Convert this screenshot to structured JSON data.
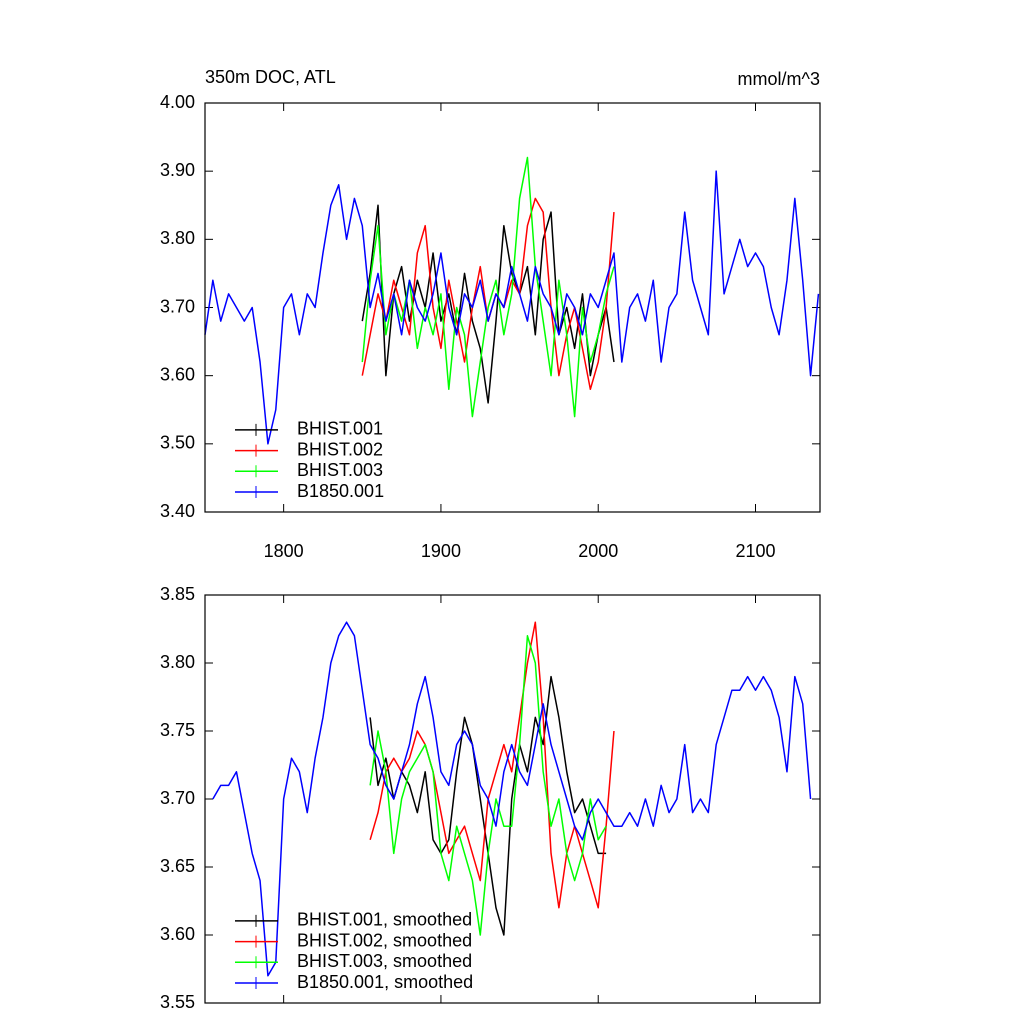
{
  "chart_data": [
    {
      "type": "line",
      "title": "350m DOC, ATL",
      "units": "mmol/m^3",
      "xlim": [
        1750,
        2141
      ],
      "xticks": [
        1800,
        1900,
        2000,
        2100
      ],
      "xtick_labels": true,
      "ylim": [
        3.4,
        4.0
      ],
      "yticks": [
        {
          "value": 3.4,
          "label": "3.40"
        },
        {
          "value": 3.5,
          "label": "3.50"
        },
        {
          "value": 3.6,
          "label": "3.60"
        },
        {
          "value": 3.7,
          "label": "3.70"
        },
        {
          "value": 3.8,
          "label": "3.80"
        },
        {
          "value": 3.9,
          "label": "3.90"
        },
        {
          "value": 4.0,
          "label": "4.00"
        }
      ],
      "legend": "lower left",
      "series": [
        {
          "name": "BHIST.001",
          "color": "#000000",
          "x": [
            1850,
            1855,
            1860,
            1865,
            1870,
            1875,
            1880,
            1885,
            1890,
            1895,
            1900,
            1905,
            1910,
            1915,
            1920,
            1925,
            1930,
            1935,
            1940,
            1945,
            1950,
            1955,
            1960,
            1965,
            1970,
            1975,
            1980,
            1985,
            1990,
            1995,
            2000,
            2005,
            2010
          ],
          "values": [
            3.68,
            3.75,
            3.85,
            3.6,
            3.72,
            3.76,
            3.68,
            3.74,
            3.7,
            3.78,
            3.68,
            3.72,
            3.66,
            3.75,
            3.68,
            3.64,
            3.56,
            3.68,
            3.82,
            3.75,
            3.72,
            3.76,
            3.66,
            3.8,
            3.84,
            3.66,
            3.7,
            3.64,
            3.72,
            3.6,
            3.66,
            3.7,
            3.62
          ]
        },
        {
          "name": "BHIST.002",
          "color": "#ff0000",
          "x": [
            1850,
            1855,
            1860,
            1865,
            1870,
            1875,
            1880,
            1885,
            1890,
            1895,
            1900,
            1905,
            1910,
            1915,
            1920,
            1925,
            1930,
            1935,
            1940,
            1945,
            1950,
            1955,
            1960,
            1965,
            1970,
            1975,
            1980,
            1985,
            1990,
            1995,
            2000,
            2005,
            2010
          ],
          "values": [
            3.6,
            3.66,
            3.72,
            3.68,
            3.74,
            3.7,
            3.66,
            3.78,
            3.82,
            3.7,
            3.64,
            3.74,
            3.68,
            3.62,
            3.7,
            3.76,
            3.68,
            3.72,
            3.7,
            3.74,
            3.72,
            3.82,
            3.86,
            3.84,
            3.7,
            3.6,
            3.66,
            3.7,
            3.64,
            3.58,
            3.62,
            3.7,
            3.84
          ]
        },
        {
          "name": "BHIST.003",
          "color": "#00ff00",
          "x": [
            1850,
            1855,
            1860,
            1865,
            1870,
            1875,
            1880,
            1885,
            1890,
            1895,
            1900,
            1905,
            1910,
            1915,
            1920,
            1925,
            1930,
            1935,
            1940,
            1945,
            1950,
            1955,
            1960,
            1965,
            1970,
            1975,
            1980,
            1985,
            1990,
            1995,
            2000,
            2005,
            2010
          ],
          "values": [
            3.62,
            3.74,
            3.82,
            3.66,
            3.72,
            3.68,
            3.74,
            3.64,
            3.7,
            3.66,
            3.72,
            3.58,
            3.7,
            3.66,
            3.54,
            3.62,
            3.7,
            3.74,
            3.66,
            3.72,
            3.86,
            3.92,
            3.76,
            3.68,
            3.6,
            3.74,
            3.66,
            3.54,
            3.7,
            3.62,
            3.66,
            3.72,
            3.76
          ]
        },
        {
          "name": "B1850.001",
          "color": "#0000ff",
          "x": [
            1750,
            1755,
            1760,
            1765,
            1770,
            1775,
            1780,
            1785,
            1790,
            1795,
            1800,
            1805,
            1810,
            1815,
            1820,
            1825,
            1830,
            1835,
            1840,
            1845,
            1850,
            1855,
            1860,
            1865,
            1870,
            1875,
            1880,
            1885,
            1890,
            1895,
            1900,
            1905,
            1910,
            1915,
            1920,
            1925,
            1930,
            1935,
            1940,
            1945,
            1950,
            1955,
            1960,
            1965,
            1970,
            1975,
            1980,
            1985,
            1990,
            1995,
            2000,
            2005,
            2010,
            2015,
            2020,
            2025,
            2030,
            2035,
            2040,
            2045,
            2050,
            2055,
            2060,
            2065,
            2070,
            2075,
            2080,
            2085,
            2090,
            2095,
            2100,
            2105,
            2110,
            2115,
            2120,
            2125,
            2130,
            2135,
            2140
          ],
          "values": [
            3.66,
            3.74,
            3.68,
            3.72,
            3.7,
            3.68,
            3.7,
            3.62,
            3.5,
            3.55,
            3.7,
            3.72,
            3.66,
            3.72,
            3.7,
            3.78,
            3.85,
            3.88,
            3.8,
            3.86,
            3.82,
            3.7,
            3.75,
            3.68,
            3.72,
            3.66,
            3.74,
            3.7,
            3.68,
            3.72,
            3.78,
            3.7,
            3.66,
            3.72,
            3.7,
            3.74,
            3.68,
            3.72,
            3.7,
            3.76,
            3.72,
            3.68,
            3.76,
            3.72,
            3.7,
            3.66,
            3.72,
            3.7,
            3.66,
            3.72,
            3.7,
            3.74,
            3.78,
            3.62,
            3.7,
            3.72,
            3.68,
            3.74,
            3.62,
            3.7,
            3.72,
            3.84,
            3.74,
            3.7,
            3.66,
            3.9,
            3.72,
            3.76,
            3.8,
            3.76,
            3.78,
            3.76,
            3.7,
            3.66,
            3.74,
            3.86,
            3.74,
            3.6,
            3.72
          ]
        }
      ]
    },
    {
      "type": "line",
      "xlim": [
        1750,
        2141
      ],
      "xticks": [
        1800,
        1900,
        2000,
        2100
      ],
      "xtick_labels": false,
      "ylim": [
        3.55,
        3.85
      ],
      "yticks": [
        {
          "value": 3.55,
          "label": "3.55"
        },
        {
          "value": 3.6,
          "label": "3.60"
        },
        {
          "value": 3.65,
          "label": "3.65"
        },
        {
          "value": 3.7,
          "label": "3.70"
        },
        {
          "value": 3.75,
          "label": "3.75"
        },
        {
          "value": 3.8,
          "label": "3.80"
        },
        {
          "value": 3.85,
          "label": "3.85"
        }
      ],
      "legend": "lower left",
      "series": [
        {
          "name": "BHIST.001, smoothed",
          "color": "#000000",
          "x": [
            1855,
            1860,
            1865,
            1870,
            1875,
            1880,
            1885,
            1890,
            1895,
            1900,
            1905,
            1910,
            1915,
            1920,
            1925,
            1930,
            1935,
            1940,
            1945,
            1950,
            1955,
            1960,
            1965,
            1970,
            1975,
            1980,
            1985,
            1990,
            1995,
            2000,
            2005
          ],
          "values": [
            3.76,
            3.71,
            3.73,
            3.7,
            3.72,
            3.71,
            3.69,
            3.72,
            3.67,
            3.66,
            3.67,
            3.72,
            3.76,
            3.74,
            3.7,
            3.66,
            3.62,
            3.6,
            3.7,
            3.74,
            3.72,
            3.76,
            3.74,
            3.79,
            3.76,
            3.72,
            3.69,
            3.7,
            3.68,
            3.66,
            3.66
          ]
        },
        {
          "name": "BHIST.002, smoothed",
          "color": "#ff0000",
          "x": [
            1855,
            1860,
            1865,
            1870,
            1875,
            1880,
            1885,
            1890,
            1895,
            1900,
            1905,
            1910,
            1915,
            1920,
            1925,
            1930,
            1935,
            1940,
            1945,
            1950,
            1955,
            1960,
            1965,
            1970,
            1975,
            1980,
            1985,
            1990,
            1995,
            2000,
            2005,
            2010
          ],
          "values": [
            3.67,
            3.69,
            3.72,
            3.73,
            3.72,
            3.73,
            3.75,
            3.74,
            3.72,
            3.69,
            3.66,
            3.67,
            3.68,
            3.66,
            3.64,
            3.7,
            3.72,
            3.74,
            3.72,
            3.76,
            3.8,
            3.83,
            3.76,
            3.66,
            3.62,
            3.66,
            3.68,
            3.66,
            3.64,
            3.62,
            3.68,
            3.75
          ]
        },
        {
          "name": "BHIST.003, smoothed",
          "color": "#00ff00",
          "x": [
            1855,
            1860,
            1865,
            1870,
            1875,
            1880,
            1885,
            1890,
            1895,
            1900,
            1905,
            1910,
            1915,
            1920,
            1925,
            1930,
            1935,
            1940,
            1945,
            1950,
            1955,
            1960,
            1965,
            1970,
            1975,
            1980,
            1985,
            1990,
            1995,
            2000,
            2005
          ],
          "values": [
            3.71,
            3.75,
            3.72,
            3.66,
            3.7,
            3.72,
            3.73,
            3.74,
            3.72,
            3.66,
            3.64,
            3.68,
            3.66,
            3.64,
            3.6,
            3.66,
            3.7,
            3.68,
            3.68,
            3.74,
            3.82,
            3.8,
            3.72,
            3.68,
            3.7,
            3.66,
            3.64,
            3.66,
            3.7,
            3.67,
            3.68
          ]
        },
        {
          "name": "B1850.001, smoothed",
          "color": "#0000ff",
          "x": [
            1755,
            1760,
            1765,
            1770,
            1775,
            1780,
            1785,
            1790,
            1795,
            1800,
            1805,
            1810,
            1815,
            1820,
            1825,
            1830,
            1835,
            1840,
            1845,
            1850,
            1855,
            1860,
            1865,
            1870,
            1875,
            1880,
            1885,
            1890,
            1895,
            1900,
            1905,
            1910,
            1915,
            1920,
            1925,
            1930,
            1935,
            1940,
            1945,
            1950,
            1955,
            1960,
            1965,
            1970,
            1975,
            1980,
            1985,
            1990,
            1995,
            2000,
            2005,
            2010,
            2015,
            2020,
            2025,
            2030,
            2035,
            2040,
            2045,
            2050,
            2055,
            2060,
            2065,
            2070,
            2075,
            2080,
            2085,
            2090,
            2095,
            2100,
            2105,
            2110,
            2115,
            2120,
            2125,
            2130,
            2135
          ],
          "values": [
            3.7,
            3.71,
            3.71,
            3.72,
            3.69,
            3.66,
            3.64,
            3.57,
            3.58,
            3.7,
            3.73,
            3.72,
            3.69,
            3.73,
            3.76,
            3.8,
            3.82,
            3.83,
            3.82,
            3.78,
            3.74,
            3.73,
            3.71,
            3.7,
            3.72,
            3.74,
            3.77,
            3.79,
            3.76,
            3.72,
            3.71,
            3.74,
            3.75,
            3.74,
            3.71,
            3.7,
            3.68,
            3.72,
            3.74,
            3.72,
            3.71,
            3.74,
            3.77,
            3.74,
            3.72,
            3.7,
            3.68,
            3.67,
            3.69,
            3.7,
            3.69,
            3.68,
            3.68,
            3.69,
            3.68,
            3.7,
            3.68,
            3.71,
            3.69,
            3.7,
            3.74,
            3.69,
            3.7,
            3.69,
            3.74,
            3.76,
            3.78,
            3.78,
            3.79,
            3.78,
            3.79,
            3.78,
            3.76,
            3.72,
            3.79,
            3.77,
            3.7
          ]
        }
      ]
    }
  ]
}
